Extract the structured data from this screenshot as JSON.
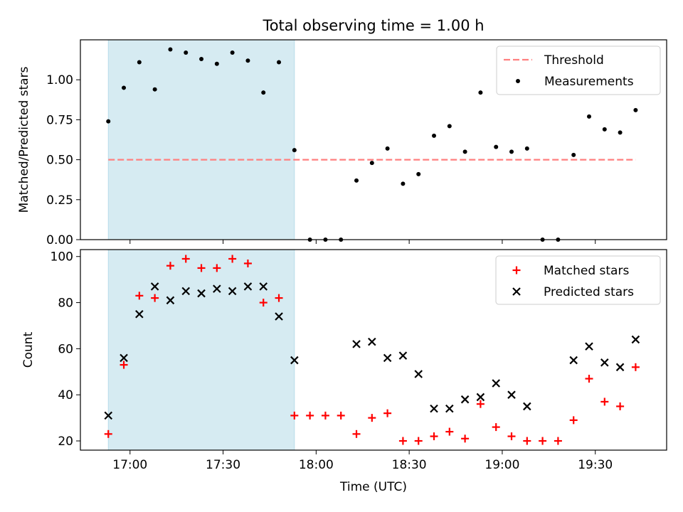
{
  "chart_data": [
    {
      "type": "scatter",
      "panel": "top",
      "title": "Total observing time = 1.00 h",
      "ylabel": "Matched/Predicted stars",
      "xlim": [
        "16:44",
        "19:53"
      ],
      "ylim": [
        0,
        1.25
      ],
      "x_tick_values": [
        "17:00",
        "17:30",
        "18:00",
        "18:30",
        "19:00",
        "19:30"
      ],
      "y_ticks": [
        "0.00",
        "0.25",
        "0.50",
        "0.75",
        "1.00"
      ],
      "shaded_span": [
        "16:53",
        "17:53"
      ],
      "shade_color": "#add8e6",
      "threshold": {
        "name": "Threshold",
        "y": 0.5,
        "x_range": [
          "16:53",
          "19:43"
        ],
        "color": "#ff7f7f",
        "style": "dashed"
      },
      "series": [
        {
          "name": "Measurements",
          "marker": "dot",
          "color": "#000000",
          "points": [
            [
              "16:53",
              0.74
            ],
            [
              "16:58",
              0.95
            ],
            [
              "17:03",
              1.11
            ],
            [
              "17:08",
              0.94
            ],
            [
              "17:13",
              1.19
            ],
            [
              "17:18",
              1.17
            ],
            [
              "17:23",
              1.13
            ],
            [
              "17:28",
              1.1
            ],
            [
              "17:33",
              1.17
            ],
            [
              "17:38",
              1.12
            ],
            [
              "17:43",
              0.92
            ],
            [
              "17:48",
              1.11
            ],
            [
              "17:53",
              0.56
            ],
            [
              "17:58",
              0.0
            ],
            [
              "18:03",
              0.0
            ],
            [
              "18:08",
              0.0
            ],
            [
              "18:13",
              0.37
            ],
            [
              "18:18",
              0.48
            ],
            [
              "18:23",
              0.57
            ],
            [
              "18:28",
              0.35
            ],
            [
              "18:33",
              0.41
            ],
            [
              "18:38",
              0.65
            ],
            [
              "18:43",
              0.71
            ],
            [
              "18:48",
              0.55
            ],
            [
              "18:53",
              0.92
            ],
            [
              "18:58",
              0.58
            ],
            [
              "19:03",
              0.55
            ],
            [
              "19:08",
              0.57
            ],
            [
              "19:13",
              0.0
            ],
            [
              "19:18",
              0.0
            ],
            [
              "19:23",
              0.53
            ],
            [
              "19:28",
              0.77
            ],
            [
              "19:33",
              0.69
            ],
            [
              "19:38",
              0.67
            ],
            [
              "19:43",
              0.81
            ]
          ]
        }
      ],
      "legend": {
        "placement": "upper right",
        "entries": [
          "Threshold",
          "Measurements"
        ]
      },
      "grid": false
    },
    {
      "type": "scatter",
      "panel": "bottom",
      "xlabel": "Time (UTC)",
      "ylabel": "Count",
      "xlim": [
        "16:44",
        "19:53"
      ],
      "ylim": [
        16,
        103
      ],
      "x_ticks": [
        "17:00",
        "17:30",
        "18:00",
        "18:30",
        "19:00",
        "19:30"
      ],
      "y_ticks": [
        "20",
        "40",
        "60",
        "80",
        "100"
      ],
      "shaded_span": [
        "16:53",
        "17:53"
      ],
      "shade_color": "#add8e6",
      "series": [
        {
          "name": "Matched stars",
          "marker": "plus",
          "color": "#ff0000",
          "points": [
            [
              "16:53",
              23
            ],
            [
              "16:58",
              53
            ],
            [
              "17:03",
              83
            ],
            [
              "17:08",
              82
            ],
            [
              "17:13",
              96
            ],
            [
              "17:18",
              99
            ],
            [
              "17:23",
              95
            ],
            [
              "17:28",
              95
            ],
            [
              "17:33",
              99
            ],
            [
              "17:38",
              97
            ],
            [
              "17:43",
              80
            ],
            [
              "17:48",
              82
            ],
            [
              "17:53",
              31
            ],
            [
              "17:58",
              31
            ],
            [
              "18:03",
              31
            ],
            [
              "18:08",
              31
            ],
            [
              "18:13",
              23
            ],
            [
              "18:18",
              30
            ],
            [
              "18:23",
              32
            ],
            [
              "18:28",
              20
            ],
            [
              "18:33",
              20
            ],
            [
              "18:38",
              22
            ],
            [
              "18:43",
              24
            ],
            [
              "18:48",
              21
            ],
            [
              "18:53",
              36
            ],
            [
              "18:58",
              26
            ],
            [
              "19:03",
              22
            ],
            [
              "19:08",
              20
            ],
            [
              "19:13",
              20
            ],
            [
              "19:18",
              20
            ],
            [
              "19:23",
              29
            ],
            [
              "19:28",
              47
            ],
            [
              "19:33",
              37
            ],
            [
              "19:38",
              35
            ],
            [
              "19:43",
              52
            ]
          ]
        },
        {
          "name": "Predicted stars",
          "marker": "x",
          "color": "#000000",
          "points": [
            [
              "16:53",
              31
            ],
            [
              "16:58",
              56
            ],
            [
              "17:03",
              75
            ],
            [
              "17:08",
              87
            ],
            [
              "17:13",
              81
            ],
            [
              "17:18",
              85
            ],
            [
              "17:23",
              84
            ],
            [
              "17:28",
              86
            ],
            [
              "17:33",
              85
            ],
            [
              "17:38",
              87
            ],
            [
              "17:43",
              87
            ],
            [
              "17:48",
              74
            ],
            [
              "17:53",
              55
            ],
            [
              "18:13",
              62
            ],
            [
              "18:18",
              63
            ],
            [
              "18:23",
              56
            ],
            [
              "18:28",
              57
            ],
            [
              "18:33",
              49
            ],
            [
              "18:38",
              34
            ],
            [
              "18:43",
              34
            ],
            [
              "18:48",
              38
            ],
            [
              "18:53",
              39
            ],
            [
              "18:58",
              45
            ],
            [
              "19:03",
              40
            ],
            [
              "19:08",
              35
            ],
            [
              "19:23",
              55
            ],
            [
              "19:28",
              61
            ],
            [
              "19:33",
              54
            ],
            [
              "19:38",
              52
            ],
            [
              "19:43",
              64
            ]
          ]
        }
      ],
      "legend": {
        "placement": "upper right",
        "entries": [
          "Matched stars",
          "Predicted stars"
        ]
      },
      "grid": false
    }
  ]
}
